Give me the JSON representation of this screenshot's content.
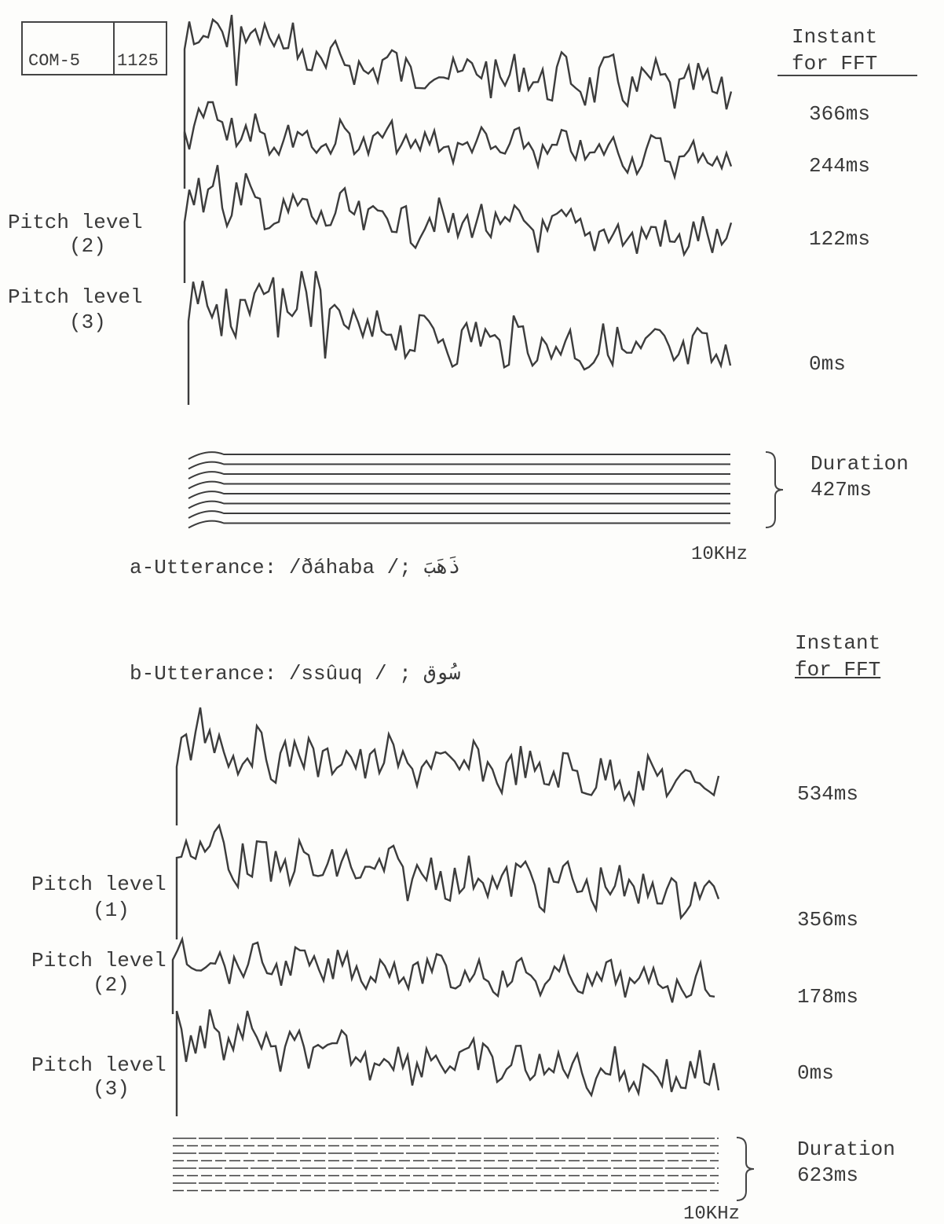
{
  "header": {
    "box": [
      "COM-5",
      "1125"
    ]
  },
  "panel_a": {
    "column_title": [
      "Instant",
      "for FFT"
    ],
    "instants": [
      "366ms",
      "244ms",
      "122ms",
      "0ms"
    ],
    "pitch_labels": [
      {
        "text": "Pitch level",
        "level": "(2)"
      },
      {
        "text": "Pitch level",
        "level": "(3)"
      }
    ],
    "duration": [
      "Duration",
      "427ms"
    ],
    "freq_label": "10KHz",
    "caption": "a-Utterance: /ðáhaba /; ذَهَبَ"
  },
  "panel_b": {
    "column_title": [
      "Instant",
      "for FFT"
    ],
    "caption": "b-Utterance: /ssûuq / ; سُوق",
    "instants": [
      "534ms",
      "356ms",
      "178ms",
      "0ms"
    ],
    "pitch_labels": [
      {
        "text": "Pitch level",
        "level": "(1)"
      },
      {
        "text": "Pitch level",
        "level": "(2)"
      },
      {
        "text": "Pitch level",
        "level": "(3)"
      }
    ],
    "duration": [
      "Duration",
      "623ms"
    ],
    "freq_label": "10KHz"
  }
}
